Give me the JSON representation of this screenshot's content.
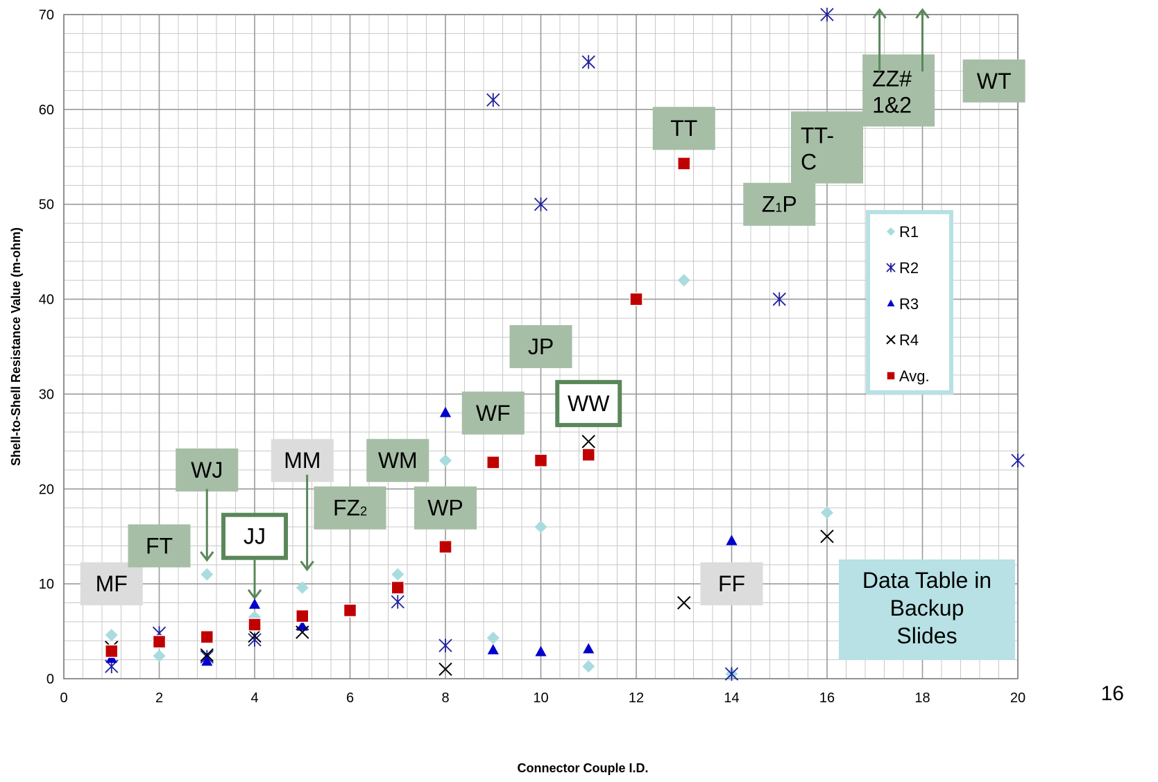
{
  "page_number": "16",
  "colors": {
    "R1": "#a9dcdf",
    "R2": "#1f1f9e",
    "R3": "#0000cc",
    "R4": "#000000",
    "Avg": "#c00000",
    "grid_major": "#9a9a9a",
    "grid_minor": "#c8c8c8",
    "label_green": "#a6bea6",
    "label_gray": "#dcdcdc",
    "outline_green": "#5a875a",
    "legend_border": "#b7e1e4",
    "backup_box": "#b7e1e4"
  },
  "chart_data": {
    "type": "scatter",
    "xlabel": "Connector Couple I.D.",
    "ylabel": "Shell-to-Shell Resistance Value (m-ohm)",
    "xlim": [
      0,
      20
    ],
    "ylim": [
      0,
      70
    ],
    "x_ticks": [
      "0",
      "2",
      "4",
      "6",
      "8",
      "10",
      "12",
      "14",
      "16",
      "18",
      "20"
    ],
    "y_ticks": [
      "0",
      "10",
      "20",
      "30",
      "40",
      "50",
      "60",
      "70"
    ],
    "grid": true,
    "legend_position": "right",
    "series": [
      {
        "name": "R1",
        "marker": "diamond",
        "points": [
          [
            1,
            4.6
          ],
          [
            2,
            2.4
          ],
          [
            3,
            11
          ],
          [
            4,
            6.5
          ],
          [
            5,
            9.6
          ],
          [
            7,
            11
          ],
          [
            8,
            23
          ],
          [
            9,
            4.3
          ],
          [
            10,
            16
          ],
          [
            11,
            1.3
          ],
          [
            13,
            42
          ],
          [
            14,
            0.5
          ],
          [
            16,
            17.5
          ]
        ]
      },
      {
        "name": "R2",
        "marker": "asterisk",
        "points": [
          [
            1,
            1.3
          ],
          [
            2,
            4.8
          ],
          [
            3,
            2.3
          ],
          [
            4,
            4.1
          ],
          [
            5,
            5.8
          ],
          [
            7,
            8.1
          ],
          [
            8,
            3.5
          ],
          [
            9,
            61
          ],
          [
            10,
            50
          ],
          [
            11,
            65
          ],
          [
            14,
            0.5
          ],
          [
            15,
            40
          ],
          [
            16,
            70
          ],
          [
            20,
            23
          ]
        ]
      },
      {
        "name": "R3",
        "marker": "triangle",
        "points": [
          [
            1,
            2.1
          ],
          [
            2,
            3.7
          ],
          [
            3,
            1.8
          ],
          [
            4,
            7.8
          ],
          [
            5,
            5.5
          ],
          [
            8,
            28
          ],
          [
            9,
            3
          ],
          [
            10,
            2.8
          ],
          [
            11,
            3.1
          ],
          [
            14,
            14.5
          ]
        ]
      },
      {
        "name": "R4",
        "marker": "x",
        "points": [
          [
            1,
            3.3
          ],
          [
            2,
            3.9
          ],
          [
            3,
            2.5
          ],
          [
            4,
            4.5
          ],
          [
            5,
            4.9
          ],
          [
            8,
            1
          ],
          [
            11,
            25
          ],
          [
            13,
            8
          ],
          [
            16,
            15
          ]
        ]
      },
      {
        "name": "Avg.",
        "marker": "square",
        "points": [
          [
            1,
            2.9
          ],
          [
            2,
            3.9
          ],
          [
            3,
            4.4
          ],
          [
            4,
            5.7
          ],
          [
            5,
            6.6
          ],
          [
            6,
            7.2
          ],
          [
            7,
            9.6
          ],
          [
            8,
            13.9
          ],
          [
            9,
            22.8
          ],
          [
            10,
            23
          ],
          [
            11,
            23.6
          ],
          [
            12,
            40
          ],
          [
            13,
            54.3
          ]
        ]
      }
    ],
    "annotations": [
      {
        "text": "MF",
        "x": 1,
        "y": 10,
        "style": "gray"
      },
      {
        "text": "FT",
        "x": 2,
        "y": 14,
        "style": "green"
      },
      {
        "text": "WJ",
        "x": 3,
        "y": 22,
        "style": "green"
      },
      {
        "text": "JJ",
        "x": 4,
        "y": 15,
        "style": "outline"
      },
      {
        "text": "MM",
        "x": 5,
        "y": 23,
        "style": "gray"
      },
      {
        "text": "FZ",
        "sub": "2",
        "x": 6,
        "y": 18,
        "style": "green"
      },
      {
        "text": "WM",
        "x": 7,
        "y": 23,
        "style": "green"
      },
      {
        "text": "WP",
        "x": 8,
        "y": 18,
        "style": "green"
      },
      {
        "text": "WF",
        "x": 9,
        "y": 28,
        "style": "green"
      },
      {
        "text": "JP",
        "x": 10,
        "y": 35,
        "style": "green"
      },
      {
        "text": "WW",
        "x": 11,
        "y": 29,
        "style": "outline"
      },
      {
        "text": "TT",
        "x": 13,
        "y": 58,
        "style": "green"
      },
      {
        "text": "FF",
        "x": 14,
        "y": 10,
        "style": "gray"
      },
      {
        "text": "Z",
        "sub": "1",
        "tail": "P",
        "x": 15,
        "y": 50,
        "style": "green"
      },
      {
        "text": "TT-",
        "line2": "C",
        "x": 16,
        "y": 56,
        "style": "green"
      },
      {
        "text": "ZZ#",
        "line2": "1&2",
        "x": 17.5,
        "y": 62,
        "style": "green"
      },
      {
        "text": "WT",
        "x": 19.5,
        "y": 63,
        "style": "green"
      }
    ],
    "note": {
      "line1": "Data Table in",
      "line2": "Backup",
      "line3": "Slides"
    }
  }
}
